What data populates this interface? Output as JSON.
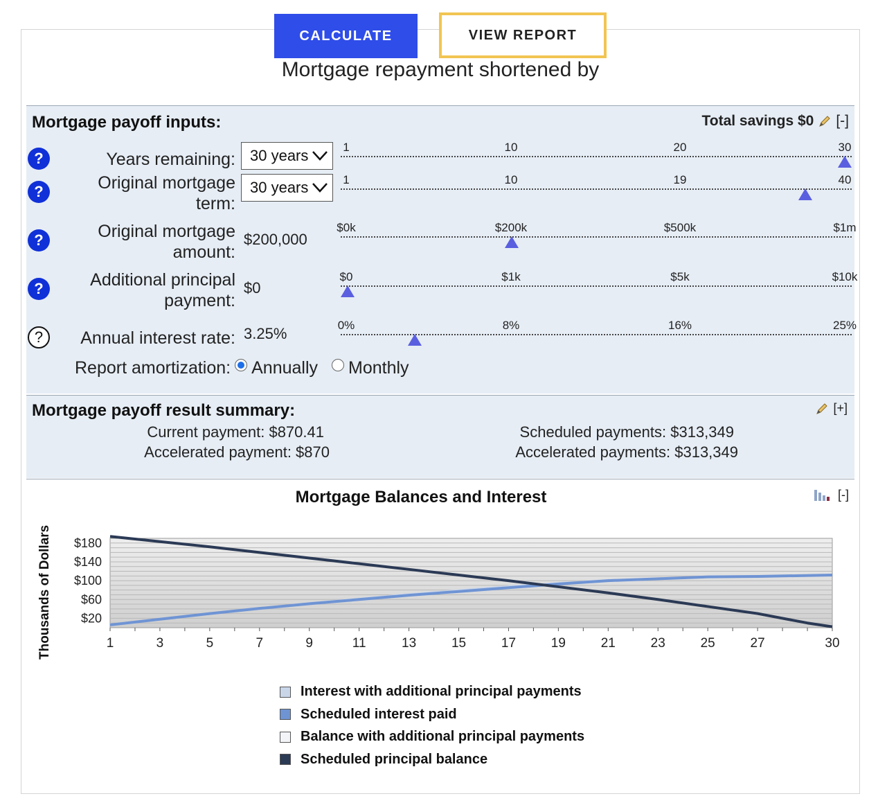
{
  "buttons": {
    "calculate": "CALCULATE",
    "view_report": "VIEW REPORT"
  },
  "headline": "Mortgage repayment shortened by",
  "inputs": {
    "title": "Mortgage payoff inputs:",
    "total_savings": "Total savings $0",
    "collapse": "[-]",
    "rows": [
      {
        "label": "Years remaining:",
        "control": "select",
        "value": "30 years",
        "ticks": [
          "1",
          "10",
          "20",
          "30"
        ],
        "thumb_fraction": 1.0,
        "help": "?"
      },
      {
        "label": "Original mortgage term:",
        "control": "select",
        "value": "30 years",
        "ticks": [
          "1",
          "10",
          "19",
          "40"
        ],
        "thumb_fraction": 0.92,
        "help": "?"
      },
      {
        "label": "Original mortgage amount:",
        "control": "text",
        "value": "$200,000",
        "ticks": [
          "$0k",
          "$200k",
          "$500k",
          "$1m"
        ],
        "thumb_fraction": 0.33,
        "help": "?"
      },
      {
        "label": "Additional principal payment:",
        "control": "text",
        "value": "$0",
        "ticks": [
          "$0",
          "$1k",
          "$5k",
          "$10k"
        ],
        "thumb_fraction": 0.0,
        "help": "?"
      },
      {
        "label": "Annual interest rate:",
        "control": "text",
        "value": "3.25%",
        "ticks": [
          "0%",
          "8%",
          "16%",
          "25%"
        ],
        "thumb_fraction": 0.135,
        "help": "?"
      }
    ],
    "amortization": {
      "label": "Report amortization:",
      "options": [
        "Annually",
        "Monthly"
      ],
      "selected": "Annually"
    }
  },
  "summary": {
    "title": "Mortgage payoff result summary:",
    "expand": "[+]",
    "current_payment": "Current payment: $870.41",
    "accelerated_payment": "Accelerated payment: $870",
    "scheduled_payments": "Scheduled payments: $313,349",
    "accelerated_payments": "Accelerated payments: $313,349"
  },
  "chart_controls": {
    "collapse": "[-]"
  },
  "chart_data": {
    "type": "line",
    "title": "Mortgage Balances and Interest",
    "ylabel": "Thousands of Dollars",
    "xlim": [
      1,
      30
    ],
    "ylim": [
      0,
      190
    ],
    "x_ticks": [
      1,
      3,
      5,
      7,
      9,
      11,
      13,
      15,
      17,
      19,
      21,
      23,
      25,
      27,
      30
    ],
    "y_ticks": [
      "$20",
      "$60",
      "$100",
      "$140",
      "$180"
    ],
    "y_tick_values": [
      20,
      60,
      100,
      140,
      180
    ],
    "grid": true,
    "legend_position": "bottom",
    "series": [
      {
        "name": "Interest with additional principal payments",
        "color": "#c9d6ea",
        "x": [
          1,
          5,
          9,
          13,
          17,
          21,
          25,
          30
        ],
        "y": [
          6,
          30,
          52,
          71,
          88,
          101,
          108,
          112
        ]
      },
      {
        "name": "Scheduled interest paid",
        "color": "#6f94d4",
        "x": [
          1,
          3,
          5,
          7,
          9,
          11,
          13,
          15,
          17,
          19,
          21,
          23,
          25,
          27,
          30
        ],
        "y": [
          6,
          18,
          30,
          41,
          51,
          60,
          69,
          77,
          85,
          93,
          100,
          104,
          108,
          109,
          112
        ]
      },
      {
        "name": "Balance with additional principal payments",
        "color": "#f2f4f8",
        "x": [
          1,
          5,
          9,
          13,
          17,
          21,
          25,
          30
        ],
        "y": [
          194,
          172,
          148,
          124,
          100,
          74,
          45,
          2
        ]
      },
      {
        "name": "Scheduled principal balance",
        "color": "#2b3a55",
        "x": [
          1,
          3,
          5,
          7,
          9,
          11,
          13,
          15,
          17,
          19,
          21,
          23,
          25,
          27,
          29,
          30
        ],
        "y": [
          194,
          183,
          172,
          160,
          148,
          136,
          124,
          112,
          100,
          87,
          74,
          60,
          45,
          30,
          10,
          2
        ]
      }
    ]
  }
}
